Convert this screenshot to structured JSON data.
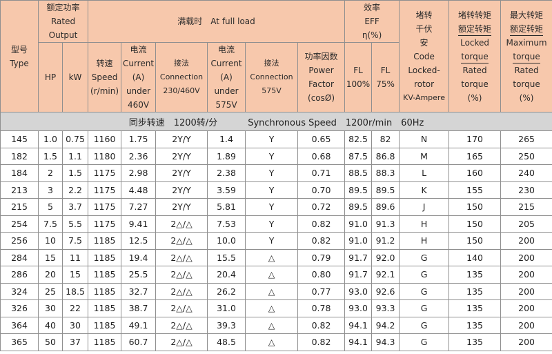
{
  "header": {
    "model": [
      "型号",
      "Type"
    ],
    "rated_output": [
      "额定功率",
      "Rated",
      "Output"
    ],
    "hp": "HP",
    "kw": "kW",
    "full_load": "满载时　At full load",
    "speed": [
      "转速",
      "Speed",
      "(r/min)"
    ],
    "current_460": [
      "电流",
      "Current",
      "(A)",
      "under",
      "460V"
    ],
    "connection_230_460": [
      "接法",
      "Connection",
      "230/460V"
    ],
    "current_575": [
      "电流",
      "Current",
      "(A)",
      "under",
      "575V"
    ],
    "connection_575": [
      "接法",
      "Connection",
      "575V"
    ],
    "power_factor": [
      "功率因数",
      "Power",
      "Factor",
      "(cosØ)"
    ],
    "eff": [
      "效率",
      "EFF",
      "η(%)"
    ],
    "fl100": [
      "FL",
      "100%"
    ],
    "fl75": [
      "FL",
      "75%"
    ],
    "code": [
      "堵转",
      "千伏",
      "安",
      "Code",
      "Locked-",
      "rotor",
      "KV-Ampere"
    ],
    "locked_torque": [
      "堵转转矩",
      "额定转矩",
      "Locked",
      "torque",
      "Rated",
      "torque",
      "(%)"
    ],
    "max_torque": [
      "最大转矩",
      "额定转矩",
      "Maximum",
      "torque",
      "Rated",
      "torque",
      "(%)"
    ]
  },
  "sync": {
    "cn": "同步转速　1200转/分",
    "en": "Synchronous Speed　1200r/min　60Hz"
  },
  "rows": [
    [
      "145",
      "1.0",
      "0.75",
      "1160",
      "1.75",
      "2Y/Y",
      "1.4",
      "Y",
      "0.65",
      "82.5",
      "82",
      "N",
      "170",
      "265"
    ],
    [
      "182",
      "1.5",
      "1.1",
      "1180",
      "2.36",
      "2Y/Y",
      "1.89",
      "Y",
      "0.68",
      "87.5",
      "86.8",
      "M",
      "165",
      "250"
    ],
    [
      "184",
      "2",
      "1.5",
      "1175",
      "2.98",
      "2Y/Y",
      "2.38",
      "Y",
      "0.71",
      "88.5",
      "88.3",
      "L",
      "160",
      "240"
    ],
    [
      "213",
      "3",
      "2.2",
      "1175",
      "4.48",
      "2Y/Y",
      "3.59",
      "Y",
      "0.70",
      "89.5",
      "89.5",
      "K",
      "155",
      "230"
    ],
    [
      "215",
      "5",
      "3.7",
      "1175",
      "7.27",
      "2Y/Y",
      "5.81",
      "Y",
      "0.72",
      "89.5",
      "89.6",
      "J",
      "150",
      "215"
    ],
    [
      "254",
      "7.5",
      "5.5",
      "1175",
      "9.41",
      "2△/△",
      "7.53",
      "Y",
      "0.82",
      "91.0",
      "91.3",
      "H",
      "150",
      "205"
    ],
    [
      "256",
      "10",
      "7.5",
      "1185",
      "12.5",
      "2△/△",
      "10.0",
      "Y",
      "0.82",
      "91.0",
      "91.2",
      "H",
      "150",
      "200"
    ],
    [
      "284",
      "15",
      "11",
      "1185",
      "19.4",
      "2△/△",
      "15.5",
      "△",
      "0.79",
      "91.7",
      "92.0",
      "G",
      "140",
      "200"
    ],
    [
      "286",
      "20",
      "15",
      "1185",
      "25.5",
      "2△/△",
      "20.4",
      "△",
      "0.80",
      "91.7",
      "92.1",
      "G",
      "135",
      "200"
    ],
    [
      "324",
      "25",
      "18.5",
      "1185",
      "32.7",
      "2△/△",
      "26.2",
      "△",
      "0.77",
      "93.0",
      "92.6",
      "G",
      "135",
      "200"
    ],
    [
      "326",
      "30",
      "22",
      "1185",
      "38.7",
      "2△/△",
      "31.0",
      "△",
      "0.78",
      "93.0",
      "93.3",
      "G",
      "135",
      "200"
    ],
    [
      "364",
      "40",
      "30",
      "1185",
      "49.1",
      "2△/△",
      "39.3",
      "△",
      "0.82",
      "94.1",
      "94.2",
      "G",
      "135",
      "200"
    ],
    [
      "365",
      "50",
      "37",
      "1185",
      "60.7",
      "2△/△",
      "48.5",
      "△",
      "0.82",
      "94.1",
      "94.3",
      "G",
      "135",
      "200"
    ]
  ]
}
